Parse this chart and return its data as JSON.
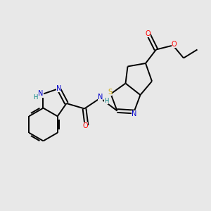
{
  "bg_color": "#e8e8e8",
  "atom_colors": {
    "C": "#000000",
    "N": "#0000cd",
    "O": "#ff0000",
    "S": "#ccaa00",
    "H": "#008080"
  },
  "lw": 1.4,
  "fs": 7.0
}
